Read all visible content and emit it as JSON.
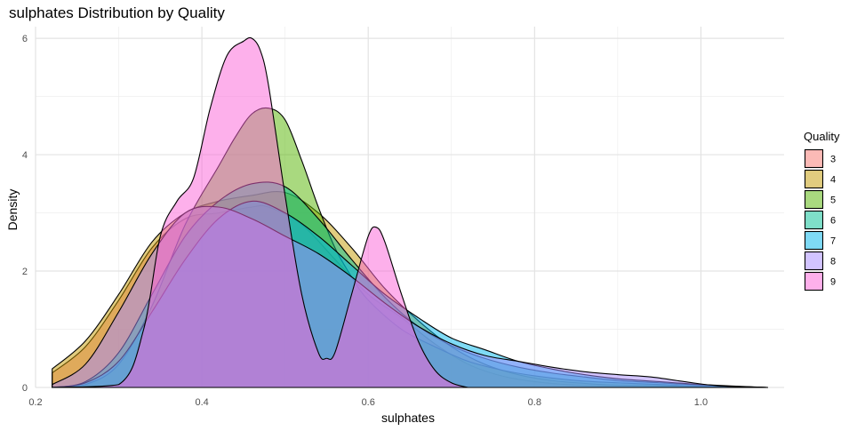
{
  "chart_data": {
    "type": "area",
    "title": "sulphates Distribution by Quality",
    "xlabel": "sulphates",
    "ylabel": "Density",
    "xlim": [
      0.2,
      1.1
    ],
    "ylim": [
      0,
      6.2
    ],
    "x_ticks": [
      0.2,
      0.4,
      0.6,
      0.8,
      1.0
    ],
    "x_tick_labels": [
      "0.2",
      "0.4",
      "0.6",
      "0.8",
      "1.0"
    ],
    "y_ticks": [
      0,
      2,
      4,
      6
    ],
    "y_tick_labels": [
      "0",
      "2",
      "4",
      "6"
    ],
    "grid": true,
    "legend": {
      "title": "Quality",
      "position": "right"
    },
    "series": [
      {
        "name": "3",
        "color": "#F8766D",
        "x": [
          0.22,
          0.26,
          0.3,
          0.34,
          0.38,
          0.42,
          0.46,
          0.48,
          0.52,
          0.56,
          0.6,
          0.64,
          0.68,
          0.72,
          0.76,
          0.8,
          0.85,
          0.9,
          1.0,
          1.08
        ],
        "y": [
          0.25,
          0.7,
          1.5,
          2.4,
          2.9,
          3.0,
          3.1,
          3.1,
          2.8,
          2.2,
          1.6,
          1.2,
          0.75,
          0.4,
          0.2,
          0.1,
          0.04,
          0.02,
          0.01,
          0.0
        ]
      },
      {
        "name": "4",
        "color": "#C49A00",
        "x": [
          0.22,
          0.26,
          0.3,
          0.34,
          0.38,
          0.42,
          0.46,
          0.5,
          0.54,
          0.58,
          0.62,
          0.66,
          0.7,
          0.74,
          0.78,
          0.82,
          0.86,
          0.9,
          1.0,
          1.08
        ],
        "y": [
          0.32,
          0.8,
          1.6,
          2.5,
          3.0,
          3.2,
          3.3,
          3.35,
          3.0,
          2.4,
          1.7,
          1.15,
          0.7,
          0.4,
          0.22,
          0.12,
          0.07,
          0.04,
          0.02,
          0.0
        ]
      },
      {
        "name": "5",
        "color": "#53B400",
        "x": [
          0.22,
          0.26,
          0.3,
          0.34,
          0.38,
          0.42,
          0.44,
          0.46,
          0.48,
          0.5,
          0.52,
          0.54,
          0.56,
          0.58,
          0.6,
          0.64,
          0.68,
          0.72,
          0.76,
          0.8,
          0.85,
          0.9,
          0.95,
          1.0,
          1.08
        ],
        "y": [
          0.0,
          0.05,
          0.4,
          1.4,
          2.8,
          3.8,
          4.3,
          4.7,
          4.8,
          4.6,
          3.9,
          3.1,
          2.4,
          1.9,
          1.5,
          1.0,
          0.7,
          0.45,
          0.3,
          0.2,
          0.12,
          0.08,
          0.05,
          0.02,
          0.0
        ]
      },
      {
        "name": "6",
        "color": "#00C094",
        "x": [
          0.22,
          0.26,
          0.3,
          0.34,
          0.38,
          0.42,
          0.46,
          0.5,
          0.54,
          0.58,
          0.62,
          0.66,
          0.7,
          0.74,
          0.78,
          0.82,
          0.86,
          0.9,
          0.95,
          1.0,
          1.08
        ],
        "y": [
          0.0,
          0.1,
          0.6,
          1.6,
          2.6,
          3.2,
          3.5,
          3.45,
          2.9,
          2.2,
          1.55,
          1.05,
          0.72,
          0.5,
          0.35,
          0.25,
          0.18,
          0.12,
          0.08,
          0.04,
          0.0
        ]
      },
      {
        "name": "7",
        "color": "#00B6EB",
        "x": [
          0.22,
          0.26,
          0.3,
          0.34,
          0.38,
          0.42,
          0.46,
          0.5,
          0.54,
          0.58,
          0.62,
          0.66,
          0.7,
          0.74,
          0.78,
          0.82,
          0.86,
          0.9,
          0.95,
          1.0,
          1.08
        ],
        "y": [
          0.0,
          0.08,
          0.45,
          1.3,
          2.2,
          2.9,
          3.2,
          3.0,
          2.6,
          2.1,
          1.6,
          1.2,
          0.85,
          0.65,
          0.45,
          0.32,
          0.22,
          0.15,
          0.1,
          0.05,
          0.0
        ]
      },
      {
        "name": "8",
        "color": "#A58AFF",
        "x": [
          0.22,
          0.26,
          0.3,
          0.34,
          0.38,
          0.42,
          0.46,
          0.5,
          0.54,
          0.58,
          0.62,
          0.66,
          0.7,
          0.74,
          0.78,
          0.82,
          0.86,
          0.9,
          0.94,
          0.98,
          1.02,
          1.08
        ],
        "y": [
          0.05,
          0.4,
          1.3,
          2.3,
          3.0,
          3.1,
          2.9,
          2.6,
          2.3,
          1.9,
          1.45,
          1.05,
          0.75,
          0.55,
          0.45,
          0.35,
          0.27,
          0.22,
          0.18,
          0.1,
          0.03,
          0.0
        ]
      },
      {
        "name": "9",
        "color": "#FB61D7",
        "x": [
          0.22,
          0.3,
          0.33,
          0.35,
          0.37,
          0.39,
          0.41,
          0.43,
          0.45,
          0.46,
          0.47,
          0.48,
          0.5,
          0.52,
          0.54,
          0.55,
          0.56,
          0.58,
          0.6,
          0.61,
          0.62,
          0.64,
          0.66,
          0.68,
          0.7,
          0.72
        ],
        "y": [
          0.0,
          0.05,
          1.0,
          2.6,
          3.2,
          3.6,
          4.8,
          5.7,
          5.95,
          6.0,
          5.8,
          5.2,
          3.3,
          1.6,
          0.6,
          0.5,
          0.6,
          1.6,
          2.6,
          2.75,
          2.5,
          1.6,
          0.8,
          0.3,
          0.08,
          0.0
        ]
      }
    ]
  }
}
